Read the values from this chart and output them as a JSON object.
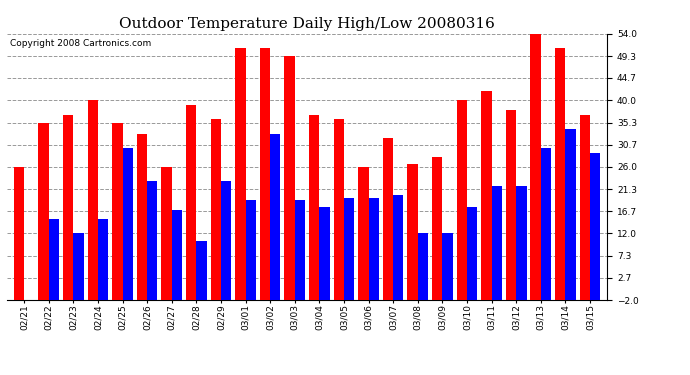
{
  "title": "Outdoor Temperature Daily High/Low 20080316",
  "copyright": "Copyright 2008 Cartronics.com",
  "dates": [
    "02/21",
    "02/22",
    "02/23",
    "02/24",
    "02/25",
    "02/26",
    "02/27",
    "02/28",
    "02/29",
    "03/01",
    "03/02",
    "03/03",
    "03/04",
    "03/05",
    "03/06",
    "03/07",
    "03/08",
    "03/09",
    "03/10",
    "03/11",
    "03/12",
    "03/13",
    "03/14",
    "03/15"
  ],
  "highs": [
    26.0,
    35.3,
    37.0,
    40.0,
    35.3,
    33.0,
    26.0,
    39.0,
    36.0,
    51.0,
    51.0,
    49.3,
    37.0,
    36.0,
    26.0,
    32.0,
    26.5,
    28.0,
    40.0,
    42.0,
    38.0,
    54.0,
    51.0,
    37.0
  ],
  "lows": [
    -2.0,
    15.0,
    12.0,
    15.0,
    30.0,
    23.0,
    17.0,
    10.5,
    23.0,
    19.0,
    33.0,
    19.0,
    17.5,
    19.5,
    19.5,
    20.0,
    12.0,
    12.0,
    17.5,
    22.0,
    22.0,
    30.0,
    34.0,
    29.0
  ],
  "high_color": "#ff0000",
  "low_color": "#0000ff",
  "bg_color": "#ffffff",
  "plot_bg_color": "#ffffff",
  "grid_color": "#999999",
  "ylim": [
    -2.0,
    54.0
  ],
  "yticks": [
    -2.0,
    2.7,
    7.3,
    12.0,
    16.7,
    21.3,
    26.0,
    30.7,
    35.3,
    40.0,
    44.7,
    49.3,
    54.0
  ],
  "title_fontsize": 11,
  "copyright_fontsize": 6.5,
  "tick_fontsize": 6.5,
  "bar_width": 0.42
}
